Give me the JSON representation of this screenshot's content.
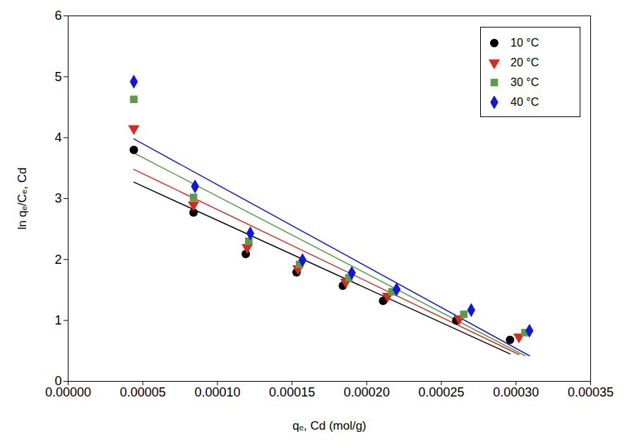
{
  "chart_data": {
    "type": "scatter",
    "x_label": "qₑ, Cd (mol/g)",
    "y_label": "ln qₑ/Cₑ, Cd",
    "xlim": [
      0,
      0.00035
    ],
    "ylim": [
      0,
      6
    ],
    "xticks": [
      {
        "value": 0,
        "label": "0.00000"
      },
      {
        "value": 5e-05,
        "label": "0.00005"
      },
      {
        "value": 0.0001,
        "label": "0.00010"
      },
      {
        "value": 0.00015,
        "label": "0.00015"
      },
      {
        "value": 0.0002,
        "label": "0.00020"
      },
      {
        "value": 0.00025,
        "label": "0.00025"
      },
      {
        "value": 0.0003,
        "label": "0.00030"
      },
      {
        "value": 0.00035,
        "label": "0.00035"
      }
    ],
    "yticks": [
      0,
      1,
      2,
      3,
      4,
      5,
      6
    ],
    "grid": false,
    "legend": "top-right",
    "series": [
      {
        "name": "10 °C",
        "color": "#000000",
        "marker": "circle",
        "x": [
          4.4e-05,
          8.4e-05,
          0.000119,
          0.000153,
          0.000184,
          0.000211,
          0.00026,
          0.000296
        ],
        "values": [
          3.8,
          2.77,
          2.09,
          1.79,
          1.57,
          1.32,
          1.0,
          0.68
        ],
        "fit_line": {
          "x": [
            4.4e-05,
            0.000296
          ],
          "values": [
            3.27,
            0.45
          ]
        }
      },
      {
        "name": "20 °C",
        "color": "#d62b1e",
        "marker": "triangle-down",
        "x": [
          4.4e-05,
          8.4e-05,
          0.00012,
          0.000154,
          0.000186,
          0.000214,
          0.000262,
          0.000302
        ],
        "values": [
          4.15,
          2.9,
          2.2,
          1.85,
          1.63,
          1.4,
          1.03,
          0.73
        ],
        "fit_line": {
          "x": [
            4.4e-05,
            0.000302
          ],
          "values": [
            3.48,
            0.44
          ]
        }
      },
      {
        "name": "30 °C",
        "color": "#5c9a4c",
        "marker": "square",
        "x": [
          4.4e-05,
          8.4e-05,
          0.000121,
          0.000155,
          0.000188,
          0.000217,
          0.000265,
          0.000306
        ],
        "values": [
          4.63,
          3.02,
          2.3,
          1.92,
          1.7,
          1.47,
          1.1,
          0.8
        ],
        "fit_line": {
          "x": [
            4.4e-05,
            0.000306
          ],
          "values": [
            3.75,
            0.42
          ]
        }
      },
      {
        "name": "40 °C",
        "color": "#1515d8",
        "marker": "diamond",
        "x": [
          4.4e-05,
          8.5e-05,
          0.000122,
          0.000157,
          0.00019,
          0.00022,
          0.00027,
          0.000309
        ],
        "values": [
          4.92,
          3.2,
          2.43,
          1.99,
          1.78,
          1.51,
          1.17,
          0.83
        ],
        "fit_line": {
          "x": [
            4.4e-05,
            0.000309
          ],
          "values": [
            3.98,
            0.42
          ]
        }
      }
    ]
  }
}
